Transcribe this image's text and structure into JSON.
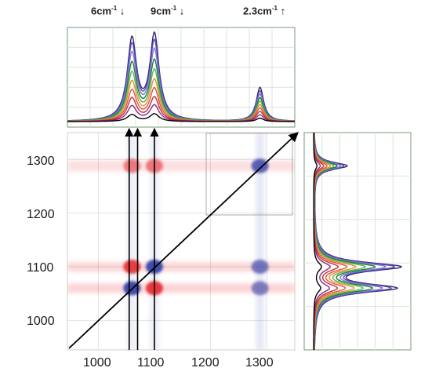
{
  "chart_data": [
    {
      "id": "top-1d-spectra",
      "type": "line",
      "xlabel": "",
      "ylabel": "",
      "xlim": [
        945,
        1350
      ],
      "series_colors": [
        "#3b1f6e",
        "#5a4fb8",
        "#7b7bd0",
        "#1f7e3a",
        "#5cba4a",
        "#f08a3c",
        "#e0553a",
        "#c0303a",
        "#8a2a8a",
        "#000000"
      ],
      "peaks": [
        {
          "center": 1060,
          "width": 10
        },
        {
          "center": 1100,
          "width": 10
        },
        {
          "center": 1288,
          "width": 8
        }
      ],
      "series": [
        {
          "values": [
            0.95,
            1.0,
            0.4
          ]
        },
        {
          "values": [
            0.88,
            0.92,
            0.36
          ]
        },
        {
          "values": [
            0.78,
            0.82,
            0.32
          ]
        },
        {
          "values": [
            0.67,
            0.7,
            0.28
          ]
        },
        {
          "values": [
            0.56,
            0.59,
            0.24
          ]
        },
        {
          "values": [
            0.46,
            0.48,
            0.2
          ]
        },
        {
          "values": [
            0.36,
            0.38,
            0.16
          ]
        },
        {
          "values": [
            0.27,
            0.28,
            0.12
          ]
        },
        {
          "values": [
            0.18,
            0.19,
            0.08
          ]
        },
        {
          "values": [
            0.08,
            0.09,
            0.04
          ]
        }
      ],
      "annotations": [
        {
          "text": "6cm",
          "sup": "-1",
          "arrow": "↓"
        },
        {
          "text": "9cm",
          "sup": "-1",
          "arrow": "↓"
        },
        {
          "text": "2.3cm",
          "sup": "-1",
          "arrow": "↑"
        }
      ]
    },
    {
      "id": "2d-correlation-map",
      "type": "heatmap",
      "xlabel": "",
      "ylabel": "",
      "xlim": [
        945,
        1350
      ],
      "ylim": [
        945,
        1350
      ],
      "x_ticks": [
        1000,
        1100,
        1200,
        1300
      ],
      "y_ticks": [
        1000,
        1100,
        1200,
        1300
      ],
      "colors": {
        "positive": "#e8262a",
        "negative": "#2a3aa8"
      },
      "features": [
        {
          "x": 1060,
          "y": 1060,
          "sign": "negative",
          "strength": 0.9
        },
        {
          "x": 1100,
          "y": 1100,
          "sign": "negative",
          "strength": 0.9
        },
        {
          "x": 1100,
          "y": 1060,
          "sign": "positive",
          "strength": 0.9
        },
        {
          "x": 1060,
          "y": 1100,
          "sign": "positive",
          "strength": 0.85
        },
        {
          "x": 1288,
          "y": 1288,
          "sign": "negative",
          "strength": 0.7
        },
        {
          "x": 1288,
          "y": 1100,
          "sign": "negative",
          "strength": 0.45
        },
        {
          "x": 1288,
          "y": 1060,
          "sign": "negative",
          "strength": 0.35
        },
        {
          "x": 1060,
          "y": 1288,
          "sign": "positive",
          "strength": 0.3
        },
        {
          "x": 1100,
          "y": 1288,
          "sign": "positive",
          "strength": 0.35
        }
      ],
      "diagonal_arrow": true,
      "guide_arrows_x": [
        1055,
        1070,
        1100
      ]
    },
    {
      "id": "right-1d-spectra",
      "type": "line",
      "orientation": "vertical",
      "ylim": [
        945,
        1350
      ],
      "series_colors": [
        "#3b1f6e",
        "#5a4fb8",
        "#7b7bd0",
        "#1f7e3a",
        "#5cba4a",
        "#f08a3c",
        "#e0553a",
        "#c0303a",
        "#8a2a8a",
        "#000000"
      ],
      "peaks": [
        {
          "center": 1060,
          "width": 10
        },
        {
          "center": 1100,
          "width": 10
        },
        {
          "center": 1288,
          "width": 8
        }
      ]
    }
  ]
}
